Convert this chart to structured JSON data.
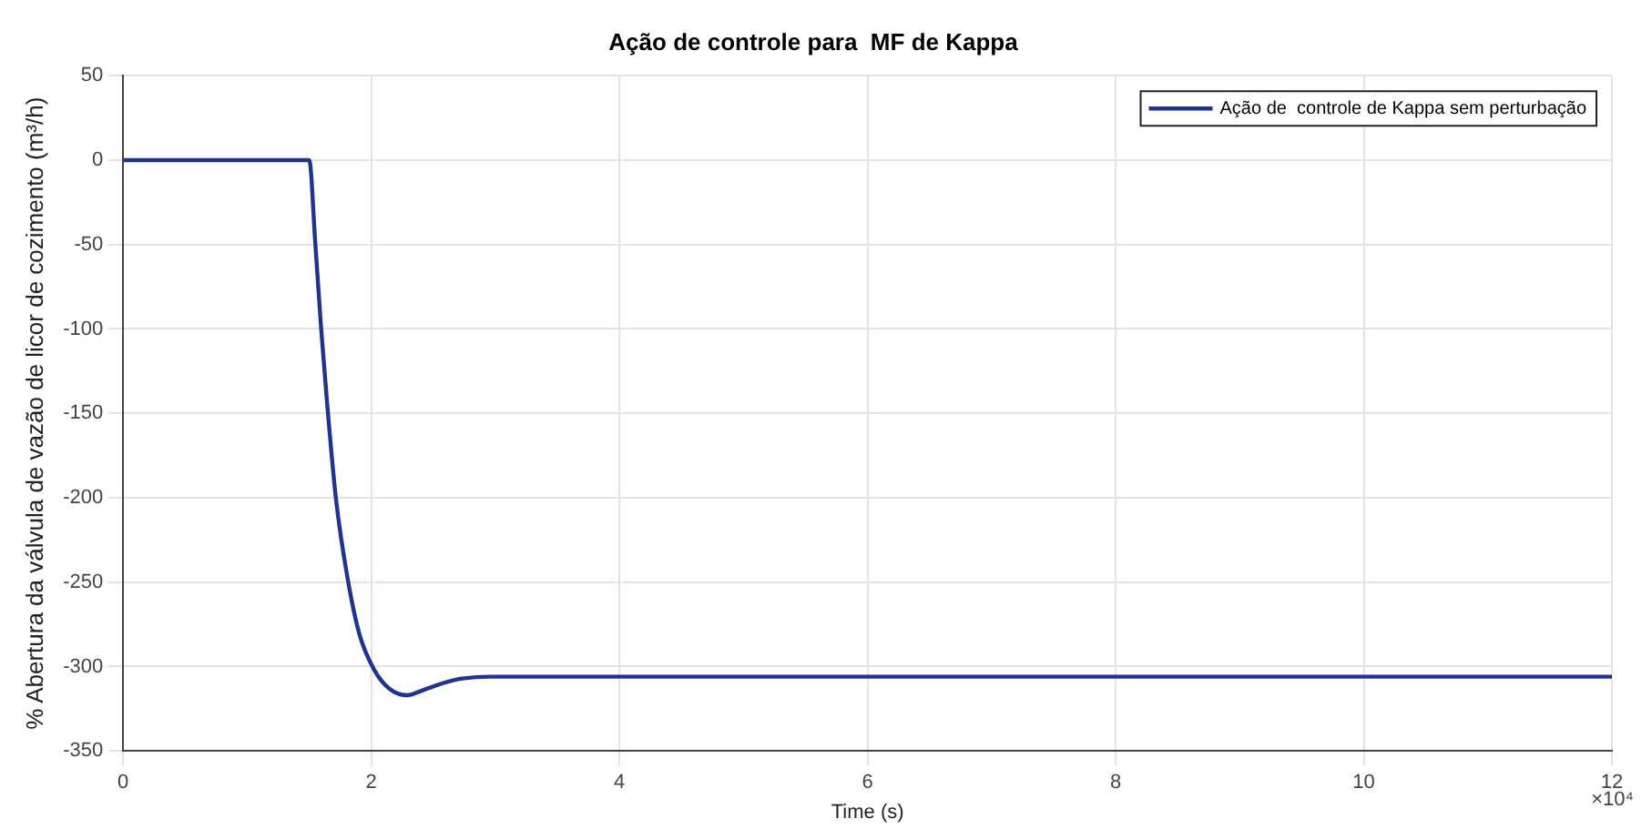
{
  "chart_data": {
    "type": "line",
    "title": "Ação de controle para  MF de Kappa",
    "xlabel": "Time (s)",
    "ylabel": "% Abertura da válvula de vazão de licor de cozimento (m³/h)",
    "x": [
      0,
      1.5,
      1.5476,
      1.5952,
      1.643,
      1.7143,
      1.8095,
      1.9048,
      2.0238,
      2.1429,
      2.2857,
      2.4524,
      2.6667,
      2.9524,
      3.2857,
      4,
      6,
      8,
      10,
      12
    ],
    "series": [
      {
        "name": "Ação de  controle de Kappa sem perturbação",
        "color": "#1f3391",
        "values": [
          0,
          0,
          -48,
          -99,
          -143,
          -200,
          -248,
          -281,
          -302,
          -313,
          -317,
          -313,
          -308,
          -306,
          -306,
          -306,
          -306,
          -306,
          -306,
          -306
        ]
      }
    ],
    "xlim": [
      0,
      12
    ],
    "xticks": [
      0,
      2,
      4,
      6,
      8,
      10,
      12
    ],
    "ylim": [
      -350,
      50
    ],
    "yticks": [
      -350,
      -300,
      -250,
      -200,
      -150,
      -100,
      -50,
      0,
      50
    ],
    "annotations": [
      "×10⁴"
    ],
    "grid": true,
    "legend": "top right",
    "marker": "none",
    "line_style": "solid"
  }
}
